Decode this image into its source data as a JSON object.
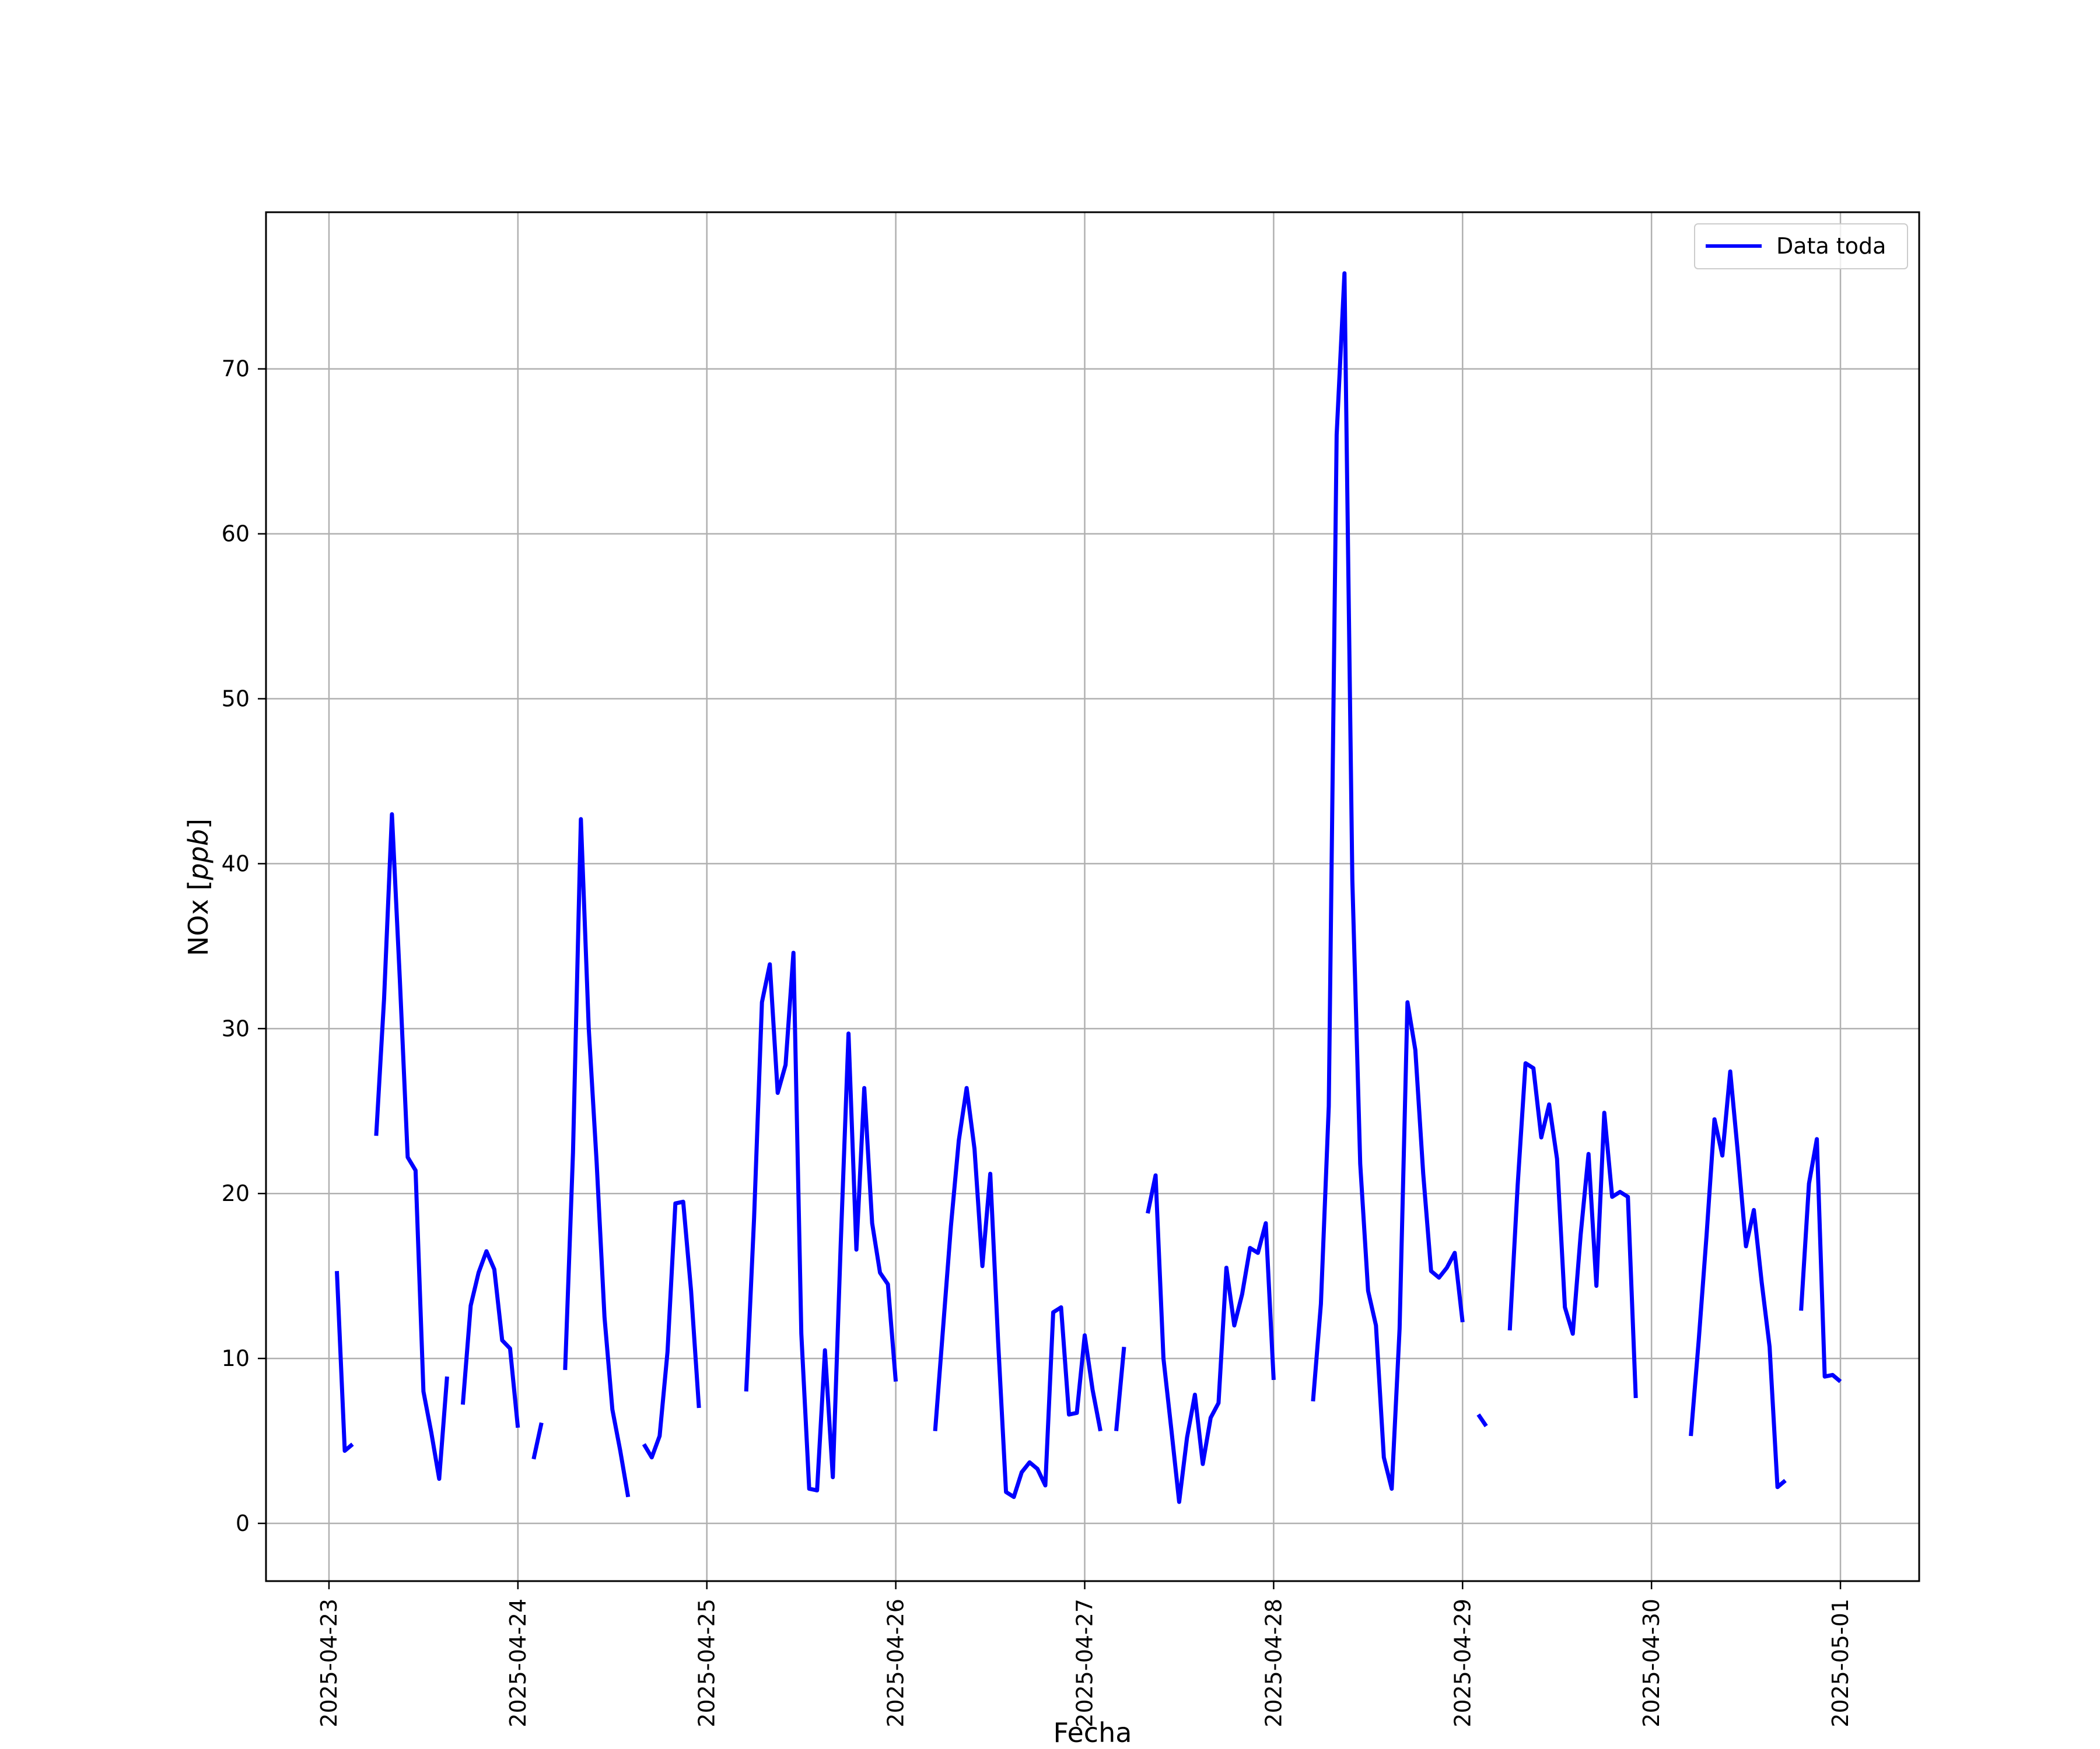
{
  "chart_data": {
    "type": "line",
    "title": "",
    "xlabel": "Fecha",
    "ylabel": "NOx [ppb]",
    "ylabel_plain": "NOx [",
    "ylabel_italic": "ppb",
    "ylabel_close": "]",
    "xlim": [
      "2025-04-22T16:00",
      "2025-05-01T10:00"
    ],
    "ylim": [
      -3.5,
      79.5
    ],
    "grid": true,
    "legend_position": "top-right",
    "x_tick_labels": [
      "2025-04-23",
      "2025-04-24",
      "2025-04-25",
      "2025-04-26",
      "2025-04-27",
      "2025-04-28",
      "2025-04-29",
      "2025-04-30",
      "2025-05-01"
    ],
    "y_ticks": [
      0,
      10,
      20,
      30,
      40,
      50,
      60,
      70
    ],
    "colors": {
      "line": "#0000ff",
      "grid": "#b0b0b0",
      "frame": "#000000"
    },
    "series": [
      {
        "name": "Data toda",
        "segments": [
          [
            [
              "2025-04-23T01:00",
              15.3
            ],
            [
              "2025-04-23T02:00",
              4.4
            ],
            [
              "2025-04-23T03:00",
              4.8
            ]
          ],
          [
            [
              "2025-04-23T06:00",
              23.5
            ],
            [
              "2025-04-23T07:00",
              31.8
            ],
            [
              "2025-04-23T08:00",
              43.0
            ],
            [
              "2025-04-23T09:00",
              33.0
            ],
            [
              "2025-04-23T10:00",
              22.2
            ],
            [
              "2025-04-23T11:00",
              21.4
            ],
            [
              "2025-04-23T12:00",
              8.0
            ],
            [
              "2025-04-23T13:00",
              5.5
            ],
            [
              "2025-04-23T14:00",
              2.7
            ],
            [
              "2025-04-23T15:00",
              8.9
            ]
          ],
          [
            [
              "2025-04-23T17:00",
              7.2
            ],
            [
              "2025-04-23T18:00",
              13.2
            ],
            [
              "2025-04-23T19:00",
              15.2
            ],
            [
              "2025-04-23T20:00",
              16.5
            ],
            [
              "2025-04-23T21:00",
              15.4
            ],
            [
              "2025-04-23T22:00",
              11.1
            ],
            [
              "2025-04-23T23:00",
              10.6
            ],
            [
              "2025-04-24T00:00",
              5.8
            ]
          ],
          [
            [
              "2025-04-24T02:00",
              3.9
            ],
            [
              "2025-04-24T03:00",
              6.1
            ]
          ],
          [
            [
              "2025-04-24T06:00",
              9.3
            ],
            [
              "2025-04-24T07:00",
              22.5
            ],
            [
              "2025-04-24T08:00",
              42.7
            ],
            [
              "2025-04-24T09:00",
              30.0
            ],
            [
              "2025-04-24T10:00",
              21.9
            ],
            [
              "2025-04-24T11:00",
              12.5
            ],
            [
              "2025-04-24T12:00",
              6.9
            ],
            [
              "2025-04-24T13:00",
              4.4
            ],
            [
              "2025-04-24T14:00",
              1.6
            ]
          ],
          [
            [
              "2025-04-24T16:00",
              4.8
            ],
            [
              "2025-04-24T17:00",
              4.0
            ],
            [
              "2025-04-24T18:00",
              5.3
            ],
            [
              "2025-04-24T19:00",
              10.4
            ],
            [
              "2025-04-24T20:00",
              19.4
            ],
            [
              "2025-04-24T21:00",
              19.5
            ],
            [
              "2025-04-24T22:00",
              14.1
            ],
            [
              "2025-04-24T23:00",
              7.0
            ]
          ],
          [
            [
              "2025-04-25T05:00",
              8.0
            ],
            [
              "2025-04-25T06:00",
              18.5
            ],
            [
              "2025-04-25T07:00",
              31.6
            ],
            [
              "2025-04-25T08:00",
              33.9
            ],
            [
              "2025-04-25T09:00",
              26.1
            ],
            [
              "2025-04-25T10:00",
              27.8
            ],
            [
              "2025-04-25T11:00",
              34.6
            ],
            [
              "2025-04-25T12:00",
              11.5
            ],
            [
              "2025-04-25T13:00",
              2.1
            ],
            [
              "2025-04-25T14:00",
              2.0
            ],
            [
              "2025-04-25T15:00",
              10.5
            ],
            [
              "2025-04-25T16:00",
              2.8
            ],
            [
              "2025-04-25T17:00",
              16.9
            ],
            [
              "2025-04-25T18:00",
              29.7
            ],
            [
              "2025-04-25T19:00",
              16.6
            ],
            [
              "2025-04-25T20:00",
              26.4
            ],
            [
              "2025-04-25T21:00",
              18.2
            ],
            [
              "2025-04-25T22:00",
              15.2
            ],
            [
              "2025-04-25T23:00",
              14.5
            ],
            [
              "2025-04-26T00:00",
              8.6
            ]
          ],
          [
            [
              "2025-04-26T05:00",
              5.6
            ],
            [
              "2025-04-26T06:00",
              11.8
            ],
            [
              "2025-04-26T07:00",
              18.0
            ],
            [
              "2025-04-26T08:00",
              23.2
            ],
            [
              "2025-04-26T09:00",
              26.4
            ],
            [
              "2025-04-26T10:00",
              22.7
            ],
            [
              "2025-04-26T11:00",
              15.6
            ],
            [
              "2025-04-26T12:00",
              21.2
            ],
            [
              "2025-04-26T13:00",
              11.0
            ],
            [
              "2025-04-26T14:00",
              1.9
            ],
            [
              "2025-04-26T15:00",
              1.6
            ],
            [
              "2025-04-26T16:00",
              3.1
            ],
            [
              "2025-04-26T17:00",
              3.7
            ],
            [
              "2025-04-26T18:00",
              3.3
            ],
            [
              "2025-04-26T19:00",
              2.3
            ],
            [
              "2025-04-26T20:00",
              12.8
            ],
            [
              "2025-04-26T21:00",
              13.1
            ],
            [
              "2025-04-26T22:00",
              6.6
            ],
            [
              "2025-04-26T23:00",
              6.7
            ],
            [
              "2025-04-27T00:00",
              11.4
            ],
            [
              "2025-04-27T01:00",
              8.1
            ],
            [
              "2025-04-27T02:00",
              5.6
            ]
          ],
          [
            [
              "2025-04-27T04:00",
              5.6
            ],
            [
              "2025-04-27T05:00",
              10.7
            ]
          ],
          [
            [
              "2025-04-27T08:00",
              18.8
            ],
            [
              "2025-04-27T09:00",
              21.1
            ],
            [
              "2025-04-27T10:00",
              10.0
            ],
            [
              "2025-04-27T11:00",
              5.7
            ],
            [
              "2025-04-27T12:00",
              1.3
            ],
            [
              "2025-04-27T13:00",
              5.2
            ],
            [
              "2025-04-27T14:00",
              7.8
            ],
            [
              "2025-04-27T15:00",
              3.6
            ],
            [
              "2025-04-27T16:00",
              6.4
            ],
            [
              "2025-04-27T17:00",
              7.3
            ],
            [
              "2025-04-27T18:00",
              15.5
            ],
            [
              "2025-04-27T19:00",
              12.0
            ],
            [
              "2025-04-27T20:00",
              13.9
            ],
            [
              "2025-04-27T21:00",
              16.7
            ],
            [
              "2025-04-27T22:00",
              16.4
            ],
            [
              "2025-04-27T23:00",
              18.2
            ],
            [
              "2025-04-28T00:00",
              8.7
            ]
          ],
          [
            [
              "2025-04-28T05:00",
              7.4
            ],
            [
              "2025-04-28T06:00",
              13.3
            ],
            [
              "2025-04-28T07:00",
              25.3
            ],
            [
              "2025-04-28T08:00",
              66.0
            ],
            [
              "2025-04-28T09:00",
              75.8
            ],
            [
              "2025-04-28T10:00",
              39.0
            ],
            [
              "2025-04-28T11:00",
              21.8
            ],
            [
              "2025-04-28T12:00",
              14.1
            ],
            [
              "2025-04-28T13:00",
              12.0
            ],
            [
              "2025-04-28T14:00",
              4.0
            ],
            [
              "2025-04-28T15:00",
              2.1
            ],
            [
              "2025-04-28T16:00",
              11.8
            ],
            [
              "2025-04-28T17:00",
              31.6
            ],
            [
              "2025-04-28T18:00",
              28.7
            ],
            [
              "2025-04-28T19:00",
              21.2
            ],
            [
              "2025-04-28T20:00",
              15.3
            ],
            [
              "2025-04-28T21:00",
              14.9
            ],
            [
              "2025-04-28T22:00",
              15.5
            ],
            [
              "2025-04-28T23:00",
              16.4
            ],
            [
              "2025-04-29T00:00",
              12.2
            ]
          ],
          [
            [
              "2025-04-29T02:00",
              6.6
            ],
            [
              "2025-04-29T03:00",
              5.9
            ]
          ],
          [
            [
              "2025-04-29T06:00",
              11.7
            ],
            [
              "2025-04-29T07:00",
              20.5
            ],
            [
              "2025-04-29T08:00",
              27.9
            ],
            [
              "2025-04-29T09:00",
              27.6
            ],
            [
              "2025-04-29T10:00",
              23.4
            ],
            [
              "2025-04-29T11:00",
              25.4
            ],
            [
              "2025-04-29T12:00",
              22.1
            ],
            [
              "2025-04-29T13:00",
              13.1
            ],
            [
              "2025-04-29T14:00",
              11.5
            ],
            [
              "2025-04-29T15:00",
              17.5
            ],
            [
              "2025-04-29T16:00",
              22.4
            ],
            [
              "2025-04-29T17:00",
              14.4
            ],
            [
              "2025-04-29T18:00",
              24.9
            ],
            [
              "2025-04-29T19:00",
              19.8
            ],
            [
              "2025-04-29T20:00",
              20.1
            ],
            [
              "2025-04-29T21:00",
              19.8
            ],
            [
              "2025-04-29T22:00",
              7.6
            ]
          ],
          [
            [
              "2025-04-30T05:00",
              5.3
            ],
            [
              "2025-04-30T06:00",
              11.1
            ],
            [
              "2025-04-30T07:00",
              17.5
            ],
            [
              "2025-04-30T08:00",
              24.5
            ],
            [
              "2025-04-30T09:00",
              22.3
            ],
            [
              "2025-04-30T10:00",
              27.4
            ],
            [
              "2025-04-30T11:00",
              22.3
            ],
            [
              "2025-04-30T12:00",
              16.8
            ],
            [
              "2025-04-30T13:00",
              19.0
            ],
            [
              "2025-04-30T14:00",
              14.6
            ],
            [
              "2025-04-30T15:00",
              10.7
            ],
            [
              "2025-04-30T16:00",
              2.2
            ],
            [
              "2025-04-30T17:00",
              2.6
            ]
          ],
          [
            [
              "2025-04-30T19:00",
              12.9
            ],
            [
              "2025-04-30T20:00",
              20.6
            ],
            [
              "2025-04-30T21:00",
              23.3
            ],
            [
              "2025-04-30T22:00",
              8.9
            ],
            [
              "2025-04-30T23:00",
              9.0
            ],
            [
              "2025-05-01T00:00",
              8.6
            ]
          ]
        ]
      }
    ]
  }
}
